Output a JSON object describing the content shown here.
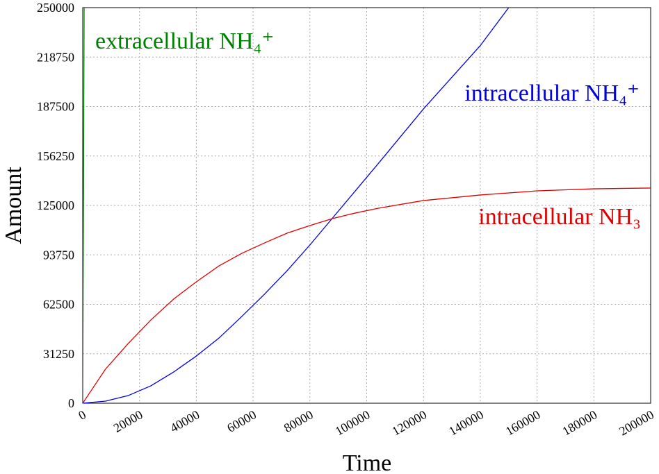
{
  "chart_data": {
    "type": "line",
    "xlabel": "Time",
    "ylabel": "Amount",
    "xlim": [
      0,
      200000
    ],
    "xticks": [
      0,
      20000,
      40000,
      60000,
      80000,
      100000,
      120000,
      140000,
      160000,
      180000,
      200000
    ],
    "ylim": [
      0,
      250000
    ],
    "yticks": [
      0,
      31250,
      62500,
      93750,
      125000,
      156250,
      187500,
      218750,
      250000
    ],
    "grid": true,
    "series": [
      {
        "name": "extracellular NH₄⁺",
        "color": "#008000",
        "x": [
          0,
          250,
          500
        ],
        "values": [
          0,
          120000,
          250000
        ]
      },
      {
        "name": "intracellular NH₄⁺",
        "color": "#0000e0",
        "x": [
          0,
          8000,
          16000,
          24000,
          32000,
          40000,
          48000,
          56000,
          64000,
          72000,
          80000,
          88000,
          96000,
          104000,
          120000,
          140000,
          150000
        ],
        "values": [
          0,
          1300,
          4800,
          11000,
          19700,
          29800,
          41200,
          54800,
          68900,
          83800,
          100000,
          117100,
          134200,
          151300,
          186000,
          226000,
          250000
        ]
      },
      {
        "name": "intracellular NH₃",
        "color": "#e00000",
        "x": [
          0,
          8000,
          16000,
          24000,
          32000,
          40000,
          48000,
          56000,
          64000,
          72000,
          80000,
          88000,
          96000,
          104000,
          120000,
          140000,
          160000,
          180000,
          200000
        ],
        "values": [
          0,
          21500,
          37700,
          52600,
          65800,
          76700,
          86800,
          94700,
          101300,
          107500,
          112300,
          116700,
          120200,
          123200,
          128100,
          131600,
          134200,
          135500,
          136000
        ]
      }
    ]
  }
}
